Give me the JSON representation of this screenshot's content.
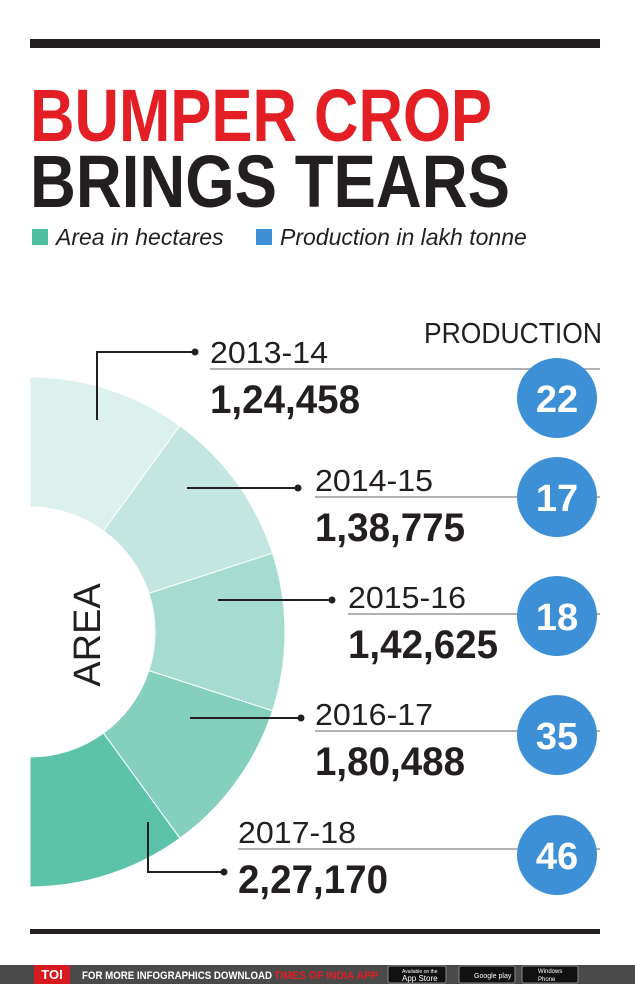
{
  "header": {
    "title_line1": "BUMPER CROP",
    "title_line2": "BRINGS TEARS"
  },
  "legend": [
    "Area in hectares",
    "Production in lakh tonne"
  ],
  "production_heading": "PRODUCTION",
  "area_label": "AREA",
  "rows": [
    {
      "year": "2013-14",
      "area": "1,24,458",
      "production": "22"
    },
    {
      "year": "2014-15",
      "area": "1,38,775",
      "production": "17"
    },
    {
      "year": "2015-16",
      "area": "1,42,625",
      "production": "18"
    },
    {
      "year": "2016-17",
      "area": "1,80,488",
      "production": "35"
    },
    {
      "year": "2017-18",
      "area": "2,27,170",
      "production": "46"
    }
  ],
  "footer": {
    "brand": "TOI",
    "text": "FOR MORE  INFOGRAPHICS DOWNLOAD",
    "app": "TIMES OF INDIA APP",
    "store1_small": "Available on the",
    "store1": "App Store",
    "store2": "Google play",
    "store3a": "Windows",
    "store3b": "Phone"
  }
}
